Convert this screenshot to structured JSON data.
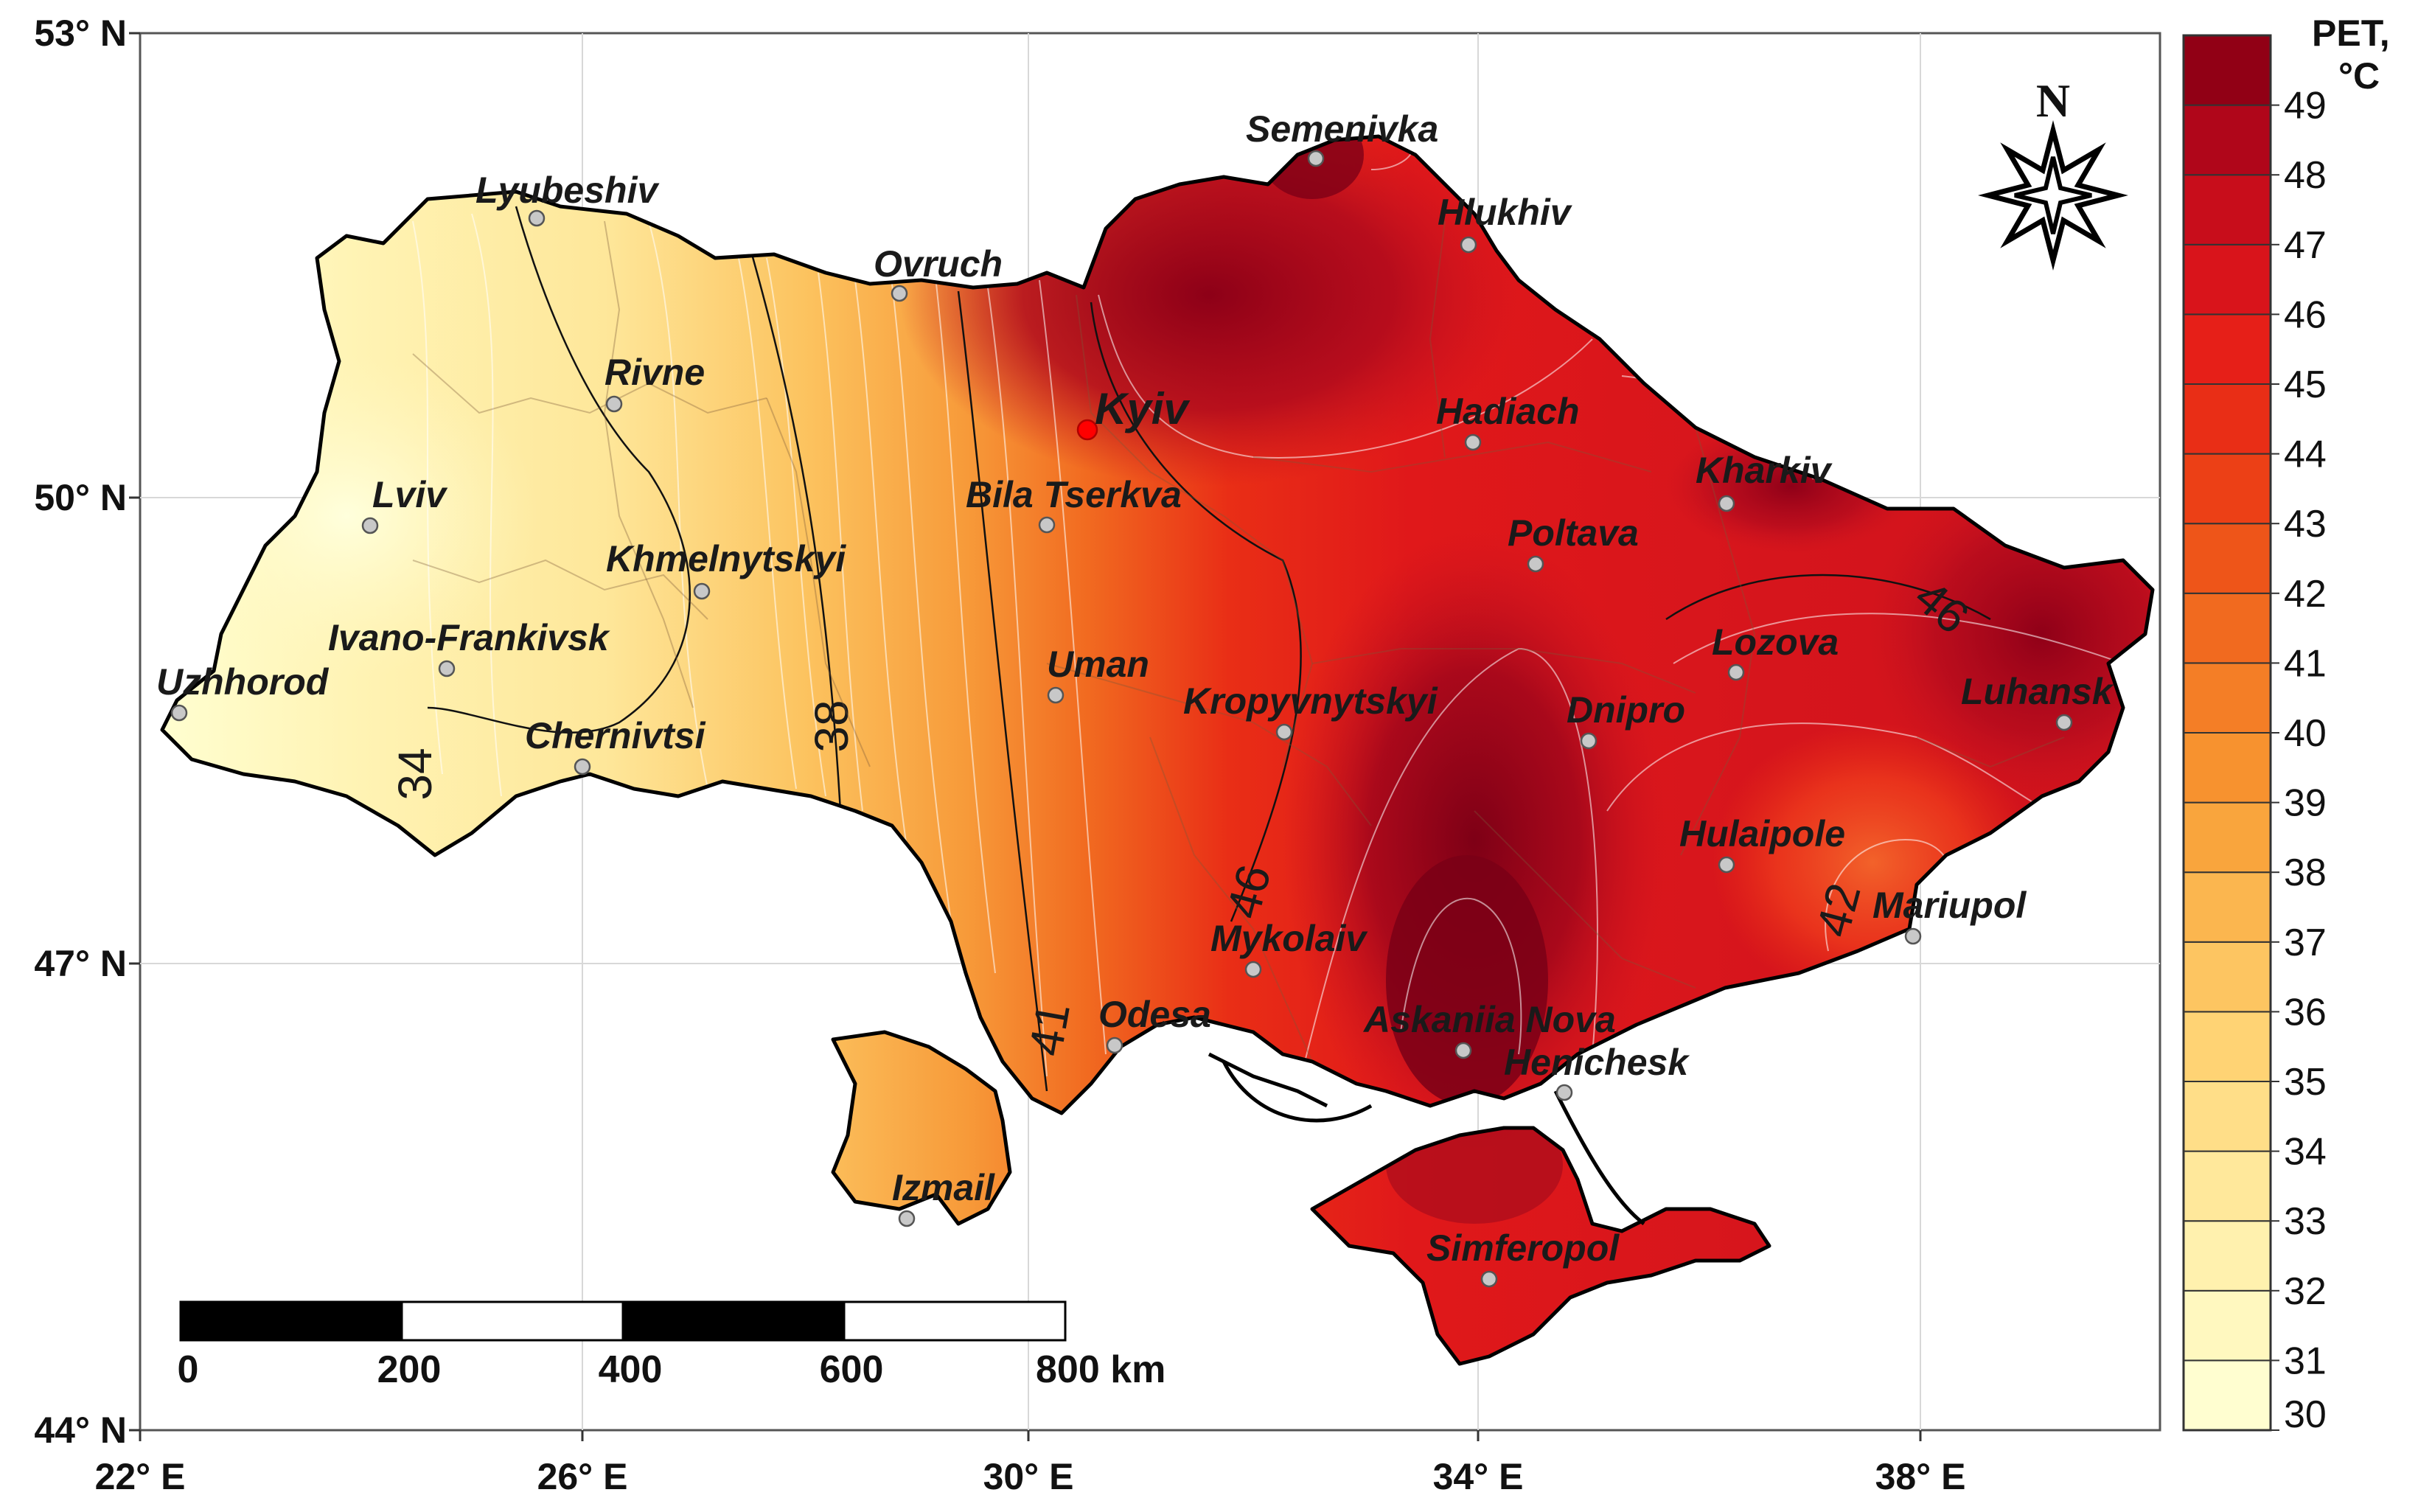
{
  "map": {
    "lat_labels": [
      "53° N",
      "50° N",
      "47° N",
      "44° N"
    ],
    "lon_labels": [
      "22° E",
      "26° E",
      "30° E",
      "34° E",
      "38° E"
    ],
    "cities": [
      {
        "name": "Lyubeshiv"
      },
      {
        "name": "Semenivka"
      },
      {
        "name": "Hlukhiv"
      },
      {
        "name": "Ovruch"
      },
      {
        "name": "Rivne"
      },
      {
        "name": "Kyiv",
        "capital": true
      },
      {
        "name": "Hadiach"
      },
      {
        "name": "Kharkiv"
      },
      {
        "name": "Lviv"
      },
      {
        "name": "Bila Tserkva"
      },
      {
        "name": "Poltava"
      },
      {
        "name": "Khmelnytskyi"
      },
      {
        "name": "Ivano-Frankivsk"
      },
      {
        "name": "Lozova"
      },
      {
        "name": "Uzhhorod"
      },
      {
        "name": "Uman"
      },
      {
        "name": "Kropyvnytskyi"
      },
      {
        "name": "Dnipro"
      },
      {
        "name": "Luhansk"
      },
      {
        "name": "Chernivtsi"
      },
      {
        "name": "Hulaipole"
      },
      {
        "name": "Mariupol"
      },
      {
        "name": "Mykolaiv"
      },
      {
        "name": "Odesa"
      },
      {
        "name": "Askaniia Nova"
      },
      {
        "name": "Henichesk"
      },
      {
        "name": "Izmail"
      },
      {
        "name": "Simferopol"
      }
    ],
    "isoline_labels": [
      "34",
      "38",
      "41",
      "46",
      "42",
      "46"
    ],
    "palette": {
      "low": "#fffed0",
      "mid": "#f6a43c",
      "high": "#e8181e",
      "max": "#7a0016",
      "border": "#000000",
      "city_marker": "#c8c8c8",
      "capital_marker": "#ff0000"
    }
  },
  "legend": {
    "title_line1": "PET,",
    "title_line2": "°C",
    "ticks": [
      "30",
      "31",
      "32",
      "33",
      "34",
      "35",
      "36",
      "37",
      "38",
      "39",
      "40",
      "41",
      "42",
      "43",
      "44",
      "45",
      "46",
      "47",
      "48",
      "49"
    ],
    "colors": [
      "#fffed0",
      "#fff8bf",
      "#fff1ae",
      "#ffe89b",
      "#ffde88",
      "#ffd374",
      "#fdc561",
      "#fbb64f",
      "#f9a53d",
      "#f7922f",
      "#f47e26",
      "#f16a1f",
      "#ee5519",
      "#ec4016",
      "#e92e16",
      "#e61f18",
      "#d9141b",
      "#c80d1b",
      "#b0061a",
      "#910015"
    ]
  },
  "scalebar": {
    "labels": [
      "0",
      "200",
      "400",
      "600",
      "800 km"
    ]
  },
  "compass": {
    "label": "N"
  }
}
